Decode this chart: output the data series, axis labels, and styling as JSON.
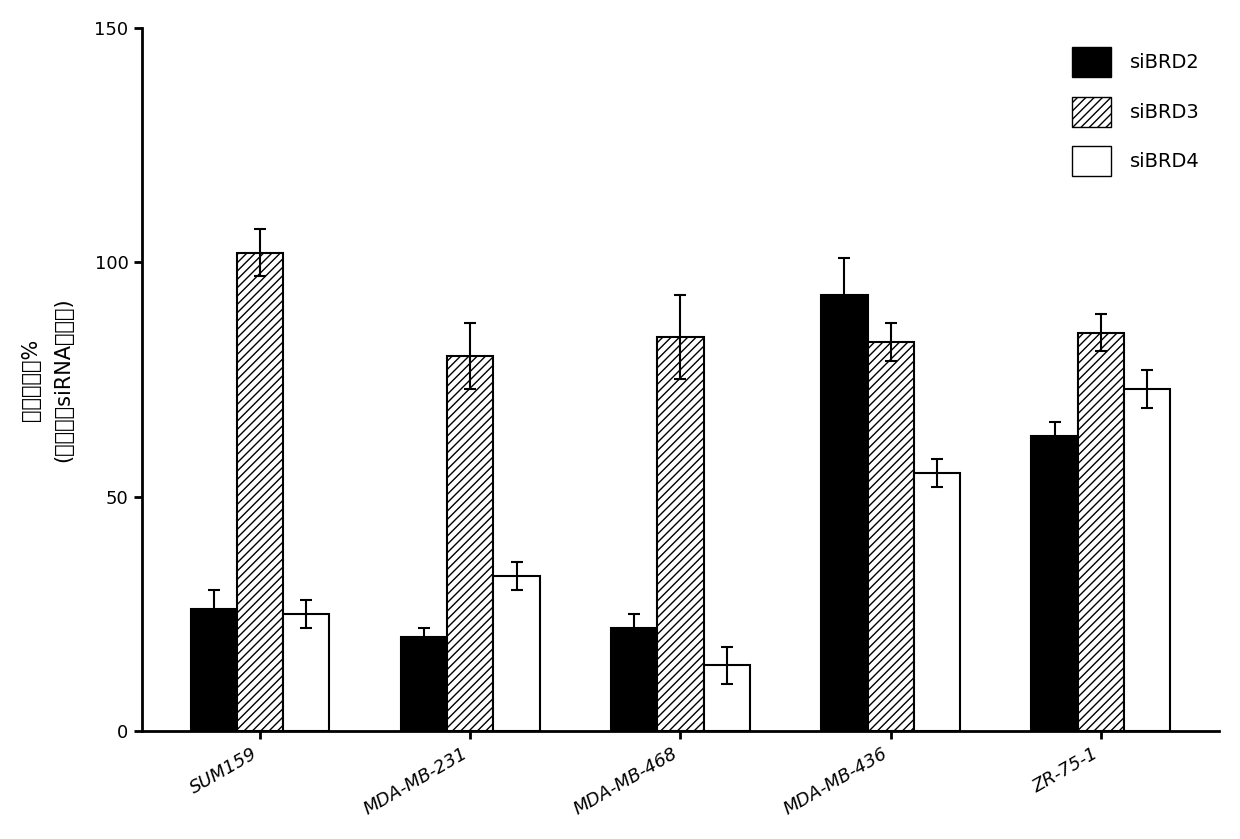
{
  "categories": [
    "SUM159",
    "MDA-MB-231",
    "MDA-MB-468",
    "MDA-MB-436",
    "ZR-75-1"
  ],
  "series": {
    "siBRD2": [
      26,
      20,
      22,
      93,
      63
    ],
    "siBRD3": [
      102,
      80,
      84,
      83,
      85
    ],
    "siBRD4": [
      25,
      33,
      14,
      55,
      73
    ]
  },
  "errors": {
    "siBRD2": [
      4,
      2,
      3,
      8,
      3
    ],
    "siBRD3": [
      5,
      7,
      9,
      4,
      4
    ],
    "siBRD4": [
      3,
      3,
      4,
      3,
      4
    ]
  },
  "ylabel_line1": "相对光单位%",
  "ylabel_line2": "(通过对照siRNA正规化)",
  "ylim": [
    0,
    150
  ],
  "yticks": [
    0,
    50,
    100,
    150
  ],
  "legend_labels": [
    "siBRD2",
    "siBRD3",
    "siBRD4"
  ],
  "bar_width": 0.22,
  "background_color": "#ffffff",
  "axis_fontsize": 15,
  "tick_fontsize": 13,
  "legend_fontsize": 14
}
